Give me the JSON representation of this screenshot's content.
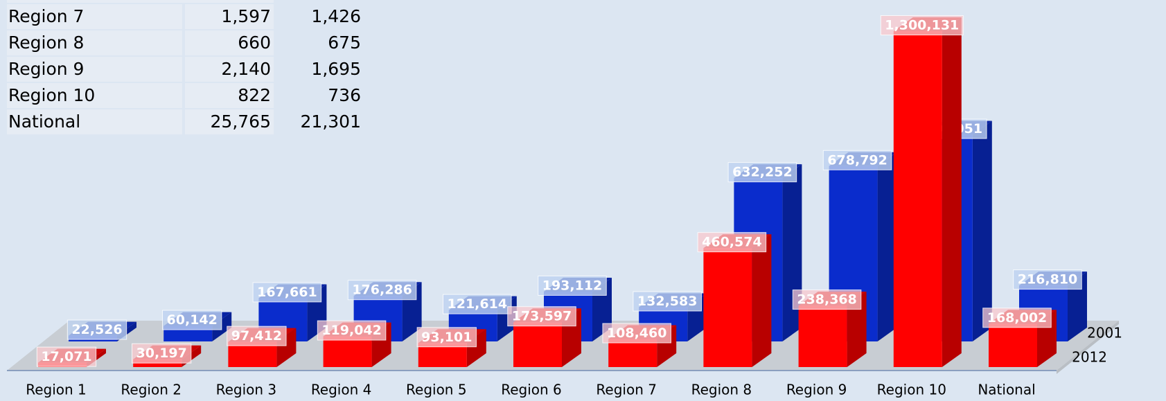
{
  "table": {
    "rows": [
      [
        "Region 7",
        "1,597",
        "1,426"
      ],
      [
        "Region 8",
        "660",
        "675"
      ],
      [
        "Region 9",
        "2,140",
        "1,695"
      ],
      [
        "Region 10",
        "822",
        "736"
      ],
      [
        "National",
        "25,765",
        "21,301"
      ]
    ]
  },
  "chart_data": {
    "type": "bar3d",
    "categories": [
      "Region 1",
      "Region 2",
      "Region 3",
      "Region 4",
      "Region 5",
      "Region 6",
      "Region 7",
      "Region 8",
      "Region 9",
      "Region 10",
      "National"
    ],
    "series": [
      {
        "name": "2012",
        "color": "#ff0000",
        "values": [
          17071,
          30197,
          97412,
          119042,
          93101,
          173597,
          108460,
          460574,
          238368,
          1300131,
          168002
        ],
        "value_labels": [
          "17,071",
          "30,197",
          "97,412",
          "119,042",
          "93,101",
          "173,597",
          "108,460",
          "460,574",
          "238,368",
          "1,300,131",
          "168,002"
        ]
      },
      {
        "name": "2001",
        "color": "#0a2ccc",
        "values": [
          22526,
          60142,
          167661,
          176286,
          121614,
          193112,
          132583,
          632252,
          678792,
          800051,
          216810
        ],
        "value_labels": [
          "22,526",
          "60,142",
          "167,661",
          "176,286",
          "121,614",
          "193,112",
          "132,583",
          "632,252",
          "678,792",
          "800,051",
          "216,810"
        ]
      }
    ]
  }
}
